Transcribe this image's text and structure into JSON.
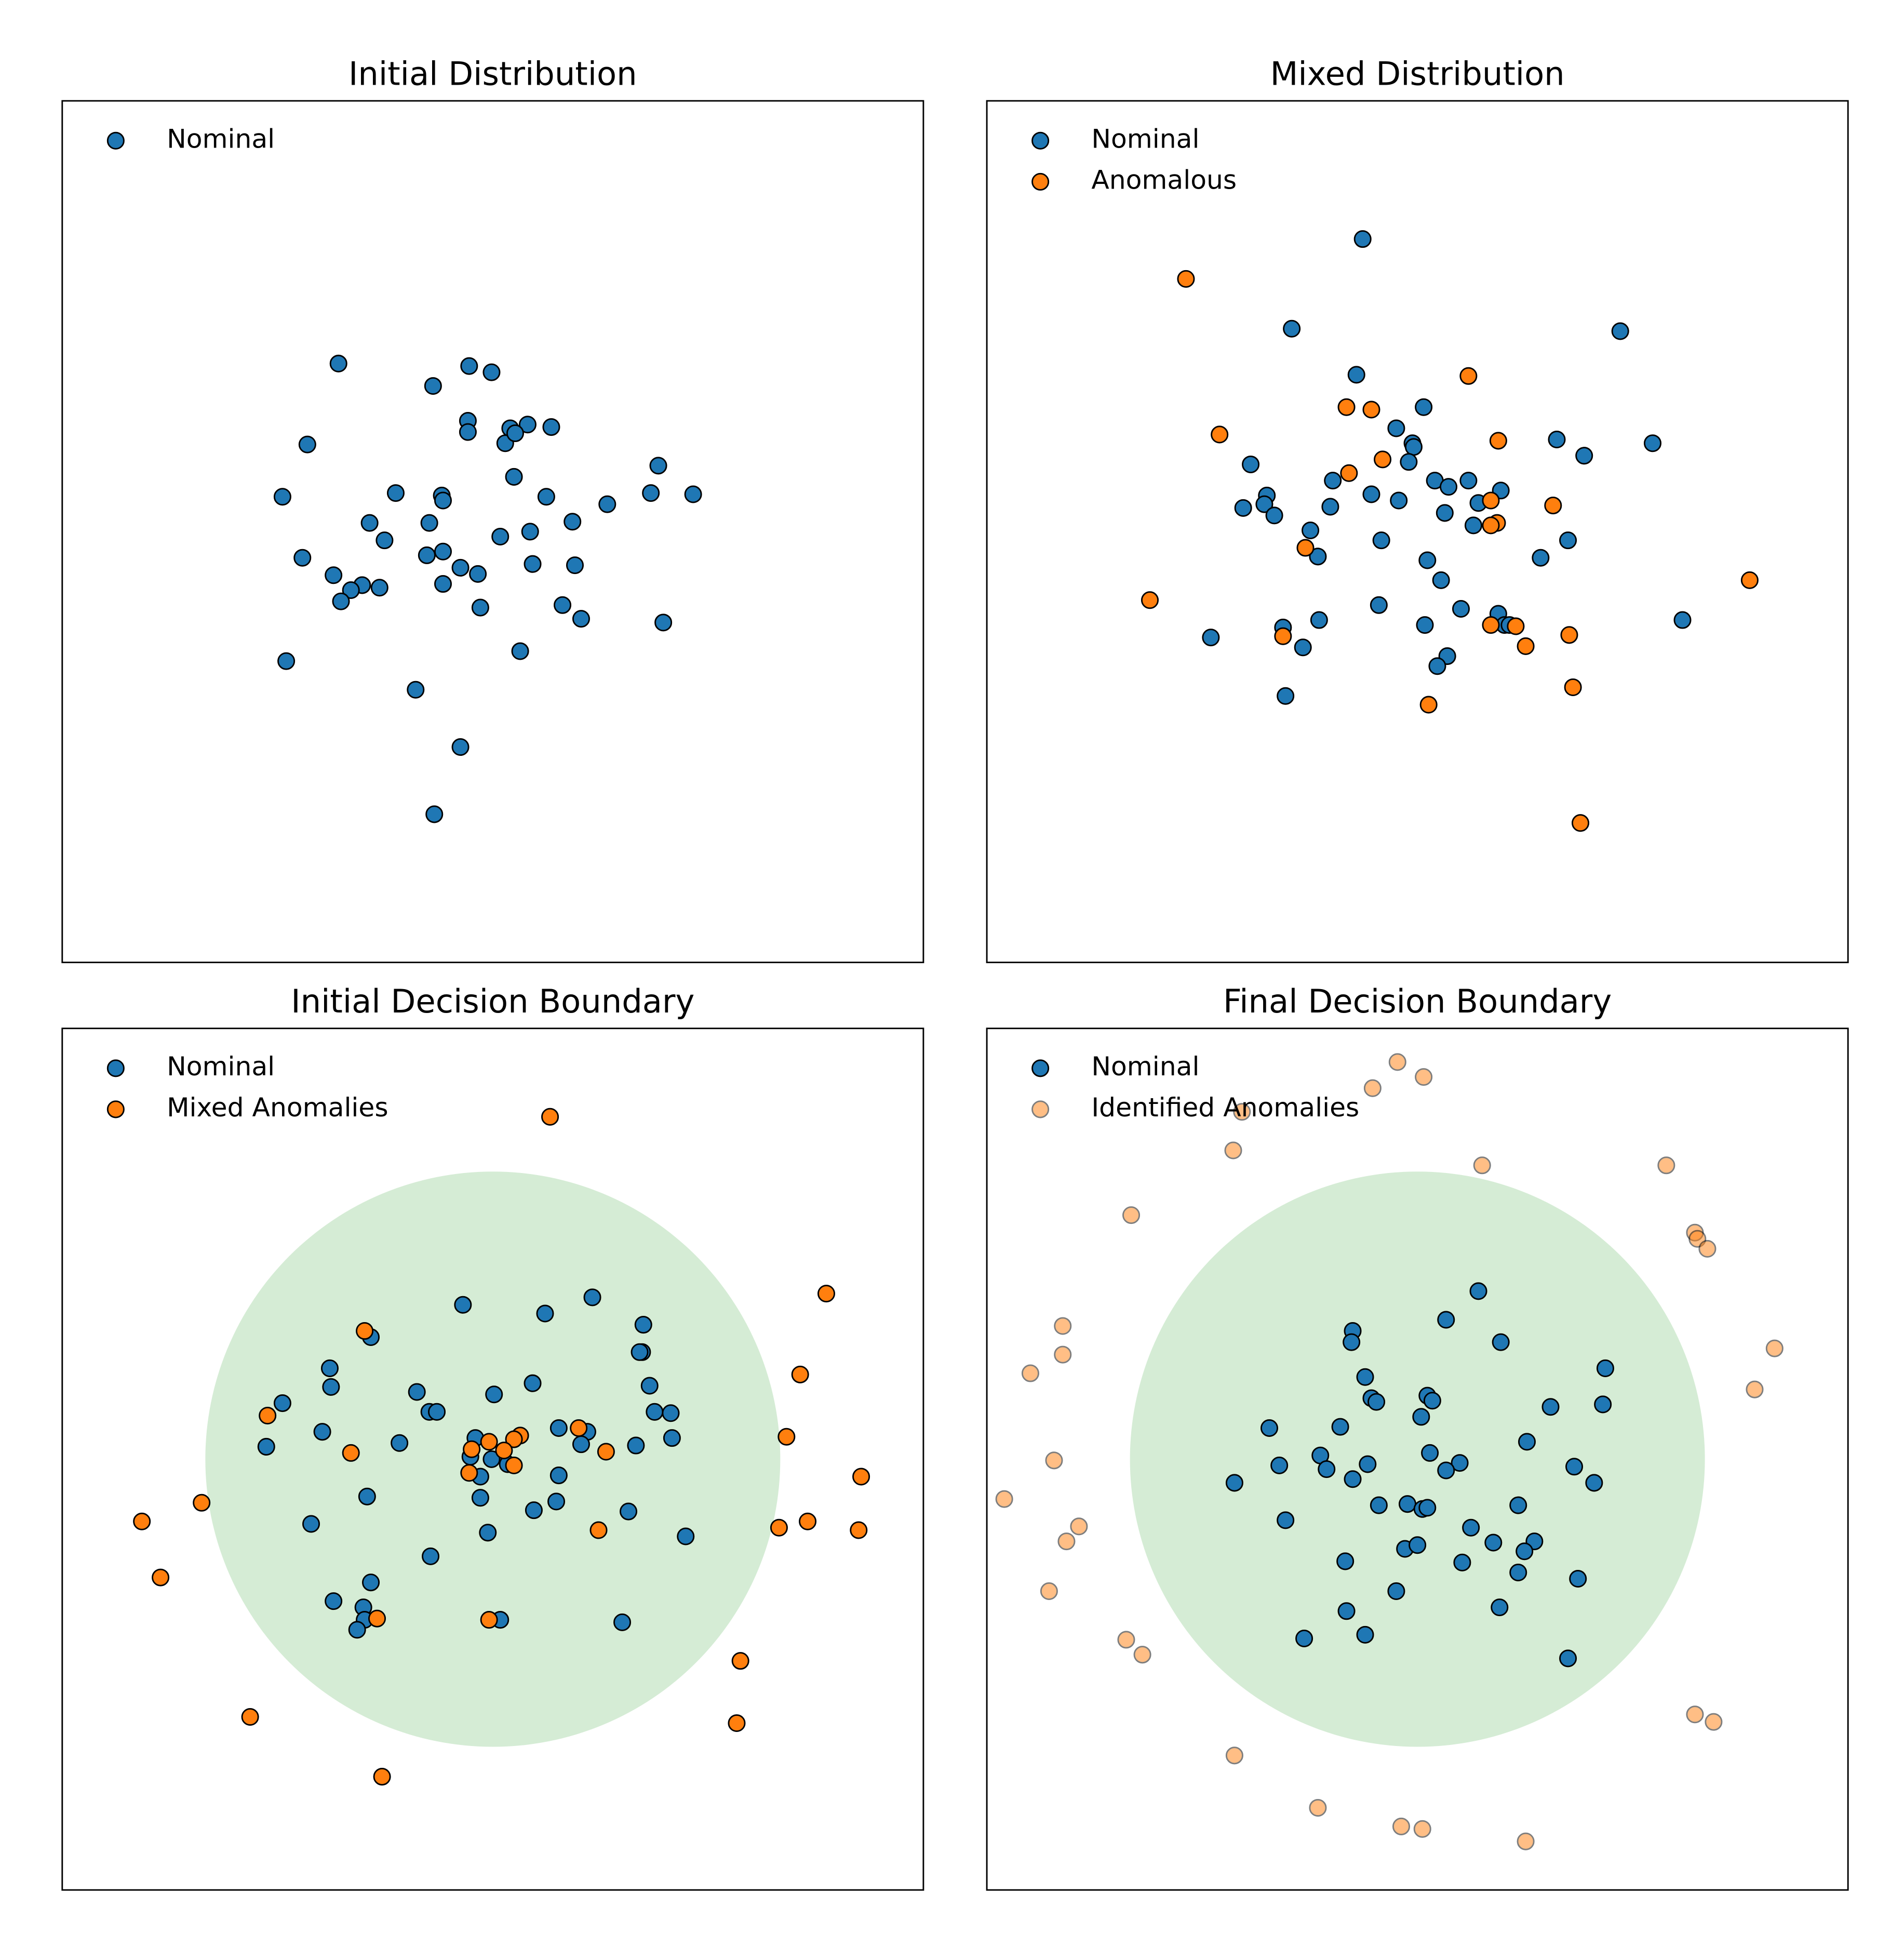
{
  "chart_data": [
    {
      "type": "scatter",
      "title": "Initial Distribution",
      "xlim": [
        -3.46,
        3.46
      ],
      "ylim": [
        -3.46,
        3.46
      ],
      "legend": "upper left",
      "series": [
        {
          "name": "Nominal",
          "color": "#1f77b4",
          "alpha": 1,
          "x": [
            -1.24,
            -0.48,
            -0.19,
            -0.01,
            -1.49,
            -0.2,
            -0.2,
            0.14,
            0.28,
            0.47,
            0.1,
            0.18,
            -1.69,
            -0.78,
            -0.41,
            -0.4,
            0.17,
            0.43,
            1.33,
            1.27,
            1.61,
            0.92,
            0.64,
            -0.99,
            -0.51,
            -0.87,
            0.06,
            0.3,
            -1.53,
            -0.53,
            -0.4,
            -0.26,
            -0.12,
            0.32,
            0.66,
            -1.28,
            -1.05,
            -1.14,
            -0.91,
            -0.4,
            -1.22,
            -0.1,
            0.56,
            0.71,
            1.37,
            -1.66,
            0.22,
            -0.62,
            -0.26,
            -0.47
          ],
          "values": [
            1.35,
            1.17,
            1.33,
            1.28,
            0.7,
            0.89,
            0.8,
            0.83,
            0.86,
            0.84,
            0.71,
            0.79,
            0.28,
            0.31,
            0.29,
            0.25,
            0.44,
            0.28,
            0.53,
            0.31,
            0.3,
            0.22,
            0.08,
            0.07,
            0.07,
            -0.07,
            -0.04,
            0.0,
            -0.21,
            -0.19,
            -0.16,
            -0.29,
            -0.34,
            -0.26,
            -0.27,
            -0.35,
            -0.43,
            -0.47,
            -0.45,
            -0.42,
            -0.56,
            -0.61,
            -0.59,
            -0.7,
            -0.73,
            -1.04,
            -0.96,
            -1.27,
            -1.73,
            -2.27
          ]
        }
      ]
    },
    {
      "type": "scatter",
      "title": "Mixed Distribution",
      "xlim": [
        -3.46,
        3.46
      ],
      "ylim": [
        -3.46,
        3.46
      ],
      "legend": "upper left",
      "series": [
        {
          "name": "Nominal",
          "color": "#1f77b4",
          "alpha": 1,
          "x": [
            -0.44,
            -1.01,
            1.63,
            -0.49,
            0.05,
            -0.17,
            -0.04,
            -0.03,
            -0.07,
            1.12,
            1.89,
            1.34,
            -1.34,
            -0.68,
            0.14,
            0.25,
            0.41,
            0.67,
            -1.21,
            -1.23,
            -1.4,
            -1.15,
            -0.7,
            -0.37,
            -0.15,
            0.22,
            0.49,
            0.45,
            -0.86,
            -0.29,
            1.21,
            -0.8,
            0.08,
            0.99,
            0.19,
            -0.31,
            0.35,
            0.65,
            -0.79,
            0.06,
            -1.08,
            0.7,
            0.74,
            2.13,
            -1.66,
            -0.92,
            0.24,
            0.16,
            -1.06
          ],
          "values": [
            2.35,
            1.63,
            1.61,
            1.26,
            1.0,
            0.83,
            0.71,
            0.68,
            0.56,
            0.74,
            0.71,
            0.61,
            0.54,
            0.41,
            0.41,
            0.36,
            0.41,
            0.33,
            0.29,
            0.22,
            0.19,
            0.13,
            0.2,
            0.3,
            0.25,
            0.15,
            0.23,
            0.05,
            0.01,
            -0.07,
            -0.07,
            -0.2,
            -0.23,
            -0.21,
            -0.39,
            -0.59,
            -0.62,
            -0.66,
            -0.71,
            -0.75,
            -0.77,
            -0.75,
            -0.75,
            -0.71,
            -0.85,
            -0.93,
            -1.0,
            -1.08,
            -1.32
          ]
        },
        {
          "name": "Anomalous",
          "color": "#ff7f0e",
          "alpha": 1,
          "x": [
            -1.86,
            0.41,
            -0.57,
            -0.37,
            -1.59,
            0.65,
            -0.28,
            -0.55,
            0.59,
            1.09,
            0.64,
            0.59,
            -0.9,
            2.67,
            -2.15,
            0.59,
            0.79,
            -1.08,
            1.22,
            0.87,
            1.25,
            0.09,
            1.31
          ],
          "values": [
            2.03,
            1.25,
            1.0,
            0.98,
            0.78,
            0.73,
            0.58,
            0.47,
            0.25,
            0.21,
            0.07,
            0.05,
            -0.13,
            -0.39,
            -0.55,
            -0.75,
            -0.76,
            -0.84,
            -0.83,
            -0.92,
            -1.25,
            -1.39,
            -2.34
          ]
        }
      ]
    },
    {
      "type": "scatter",
      "title": "Initial Decision Boundary",
      "xlim": [
        -3.46,
        3.46
      ],
      "ylim": [
        -3.46,
        3.46
      ],
      "legend": "upper left",
      "boundary": {
        "center": [
          0,
          0
        ],
        "radius": 2.31,
        "color": "#2ca02c",
        "alpha": 0.2
      },
      "series": [
        {
          "name": "Nominal",
          "color": "#1f77b4",
          "alpha": 1,
          "x": [
            -0.24,
            0.42,
            0.8,
            1.21,
            -0.98,
            -1.31,
            1.2,
            1.18,
            -1.3,
            0.32,
            1.26,
            -1.69,
            -0.61,
            0.01,
            -0.51,
            -0.45,
            1.3,
            1.43,
            -1.37,
            0.53,
            0.76,
            1.44,
            -1.82,
            -0.75,
            -0.14,
            0.71,
            1.15,
            -0.18,
            -0.01,
            -0.1,
            0.12,
            0.53,
            -1.01,
            -0.1,
            0.51,
            0.33,
            1.09,
            -1.46,
            -0.04,
            1.55,
            -0.5,
            -0.98,
            -1.28,
            -1.04,
            -1.03,
            0.06,
            1.04,
            -1.09
          ],
          "values": [
            1.24,
            1.17,
            1.3,
            1.08,
            0.98,
            0.73,
            0.86,
            0.86,
            0.58,
            0.61,
            0.59,
            0.45,
            0.54,
            0.52,
            0.38,
            0.38,
            0.38,
            0.37,
            0.22,
            0.25,
            0.22,
            0.17,
            0.1,
            0.13,
            0.17,
            0.12,
            0.11,
            0.02,
            0.0,
            -0.14,
            -0.04,
            -0.13,
            -0.3,
            -0.31,
            -0.34,
            -0.41,
            -0.42,
            -0.52,
            -0.59,
            -0.62,
            -0.78,
            -0.99,
            -1.14,
            -1.19,
            -1.29,
            -1.29,
            -1.31,
            -1.37
          ]
        },
        {
          "name": "Mixed Anomalies",
          "color": "#ff7f0e",
          "alpha": 1,
          "x": [
            0.46,
            2.68,
            -1.03,
            2.47,
            -1.81,
            0.69,
            0.22,
            0.17,
            -0.03,
            2.36,
            -0.17,
            0.09,
            -1.14,
            0.91,
            0.17,
            -0.19,
            2.96,
            -2.34,
            -2.82,
            2.53,
            2.3,
            0.85,
            2.94,
            -2.67,
            -0.93,
            -0.03,
            1.99,
            -1.95,
            1.96,
            -0.89
          ],
          "values": [
            2.75,
            1.33,
            1.03,
            0.68,
            0.35,
            0.25,
            0.19,
            0.16,
            0.14,
            0.18,
            0.08,
            0.07,
            0.05,
            0.06,
            -0.05,
            -0.11,
            -0.14,
            -0.35,
            -0.5,
            -0.5,
            -0.55,
            -0.57,
            -0.57,
            -0.95,
            -1.28,
            -1.29,
            -1.62,
            -2.07,
            -2.12,
            -2.55
          ]
        }
      ]
    },
    {
      "type": "scatter",
      "title": "Final Decision Boundary",
      "xlim": [
        -3.46,
        3.46
      ],
      "ylim": [
        -3.46,
        3.46
      ],
      "legend": "upper left",
      "boundary": {
        "center": [
          0,
          0
        ],
        "radius": 2.31,
        "color": "#2ca02c",
        "alpha": 0.2
      },
      "series": [
        {
          "name": "Nominal",
          "color": "#1f77b4",
          "alpha": 1,
          "x": [
            0.49,
            0.23,
            -0.52,
            -0.53,
            0.67,
            1.51,
            -0.42,
            -0.37,
            -0.33,
            0.08,
            0.12,
            1.49,
            1.07,
            0.03,
            -1.19,
            -0.62,
            0.88,
            -0.78,
            0.1,
            -1.11,
            -0.73,
            -0.4,
            0.34,
            0.23,
            1.26,
            -1.47,
            -0.52,
            1.42,
            -0.31,
            -0.08,
            0.04,
            0.08,
            0.81,
            -1.06,
            0.43,
            0.61,
            0.94,
            -0.1,
            0.0,
            0.86,
            -0.58,
            0.36,
            0.81,
            1.29,
            -0.17,
            0.66,
            -0.57,
            -0.42,
            -0.91,
            1.21
          ],
          "values": [
            1.35,
            1.12,
            1.03,
            0.94,
            0.94,
            0.73,
            0.66,
            0.49,
            0.46,
            0.51,
            0.47,
            0.44,
            0.42,
            0.34,
            0.25,
            0.26,
            0.14,
            0.03,
            0.05,
            -0.05,
            -0.08,
            -0.04,
            -0.03,
            -0.09,
            -0.06,
            -0.19,
            -0.16,
            -0.19,
            -0.37,
            -0.36,
            -0.4,
            -0.39,
            -0.37,
            -0.49,
            -0.55,
            -0.67,
            -0.66,
            -0.72,
            -0.69,
            -0.74,
            -0.82,
            -0.83,
            -0.91,
            -0.96,
            -1.06,
            -1.19,
            -1.22,
            -1.41,
            -1.44,
            -1.6
          ]
        },
        {
          "name": "Identified Anomalies",
          "color": "#ff7f0e",
          "alpha": 0.5,
          "x": [
            -0.16,
            0.05,
            -0.36,
            -1.41,
            -1.48,
            0.52,
            2.0,
            -2.3,
            2.23,
            2.25,
            2.33,
            -2.85,
            -2.85,
            2.87,
            -3.11,
            2.71,
            -2.92,
            -3.32,
            -2.72,
            -2.82,
            -2.96,
            -2.34,
            -2.21,
            2.23,
            2.38,
            -1.47,
            -0.8,
            -0.13,
            0.04,
            0.87
          ],
          "values": [
            3.19,
            3.07,
            2.98,
            2.79,
            2.48,
            2.36,
            2.36,
            1.96,
            1.82,
            1.77,
            1.69,
            1.07,
            0.84,
            0.89,
            0.69,
            0.56,
            -0.01,
            -0.32,
            -0.54,
            -0.66,
            -1.06,
            -1.45,
            -1.57,
            -2.05,
            -2.11,
            -2.38,
            -2.8,
            -2.95,
            -2.97,
            -3.07
          ]
        }
      ]
    }
  ]
}
